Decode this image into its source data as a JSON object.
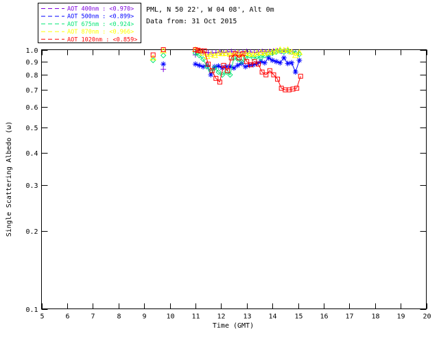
{
  "header": {
    "location": "PML, N 50 22', W 04 08', Alt 0m",
    "date": "Data from: 31 Oct 2015"
  },
  "legend": {
    "entries": [
      {
        "label": "AOT  400nm : <0.970>",
        "color": "#7D00E0",
        "marker": "plus"
      },
      {
        "label": "AOT  500nm : <0.899>",
        "color": "#0000FF",
        "marker": "asterisk"
      },
      {
        "label": "AOT  675nm : <0.924>",
        "color": "#00E673",
        "marker": "diamond"
      },
      {
        "label": "AOT  870nm : <0.966>",
        "color": "#FFFF00",
        "marker": "triangle"
      },
      {
        "label": "AOT 1020nm : <0.859>",
        "color": "#FF0000",
        "marker": "square"
      }
    ]
  },
  "chart_data": {
    "type": "line",
    "title": "",
    "xlabel": "Time (GMT)",
    "ylabel": "Single Scattering Albedo (ω)",
    "xlim": [
      5,
      20
    ],
    "ylim": [
      0.1,
      1.0
    ],
    "y_scale": "log",
    "x_ticks": [
      5,
      6,
      7,
      8,
      9,
      10,
      11,
      12,
      13,
      14,
      15,
      16,
      17,
      18,
      19,
      20
    ],
    "y_ticks": [
      1.0,
      0.9,
      0.8,
      0.7,
      0.6,
      0.5,
      0.4,
      0.3,
      0.2,
      0.1
    ],
    "grid": false,
    "legend_position": "top-left",
    "line_gap_threshold_hours": 0.35,
    "series": [
      {
        "name": "AOT 400nm",
        "mean_label": "<0.970>",
        "color": "#7D00E0",
        "marker": "plus",
        "points": [
          [
            9.75,
            0.84
          ],
          [
            11.0,
            0.955
          ],
          [
            11.12,
            0.99
          ],
          [
            11.3,
            0.98
          ],
          [
            11.5,
            0.975
          ],
          [
            11.65,
            0.97
          ],
          [
            11.8,
            0.975
          ],
          [
            11.95,
            0.98
          ],
          [
            12.1,
            0.975
          ],
          [
            12.25,
            0.98
          ],
          [
            12.4,
            0.985
          ],
          [
            12.55,
            0.98
          ],
          [
            12.7,
            0.975
          ],
          [
            12.85,
            0.98
          ],
          [
            13.0,
            0.985
          ],
          [
            13.15,
            0.98
          ],
          [
            13.3,
            0.975
          ],
          [
            13.45,
            0.98
          ],
          [
            13.6,
            0.985
          ],
          [
            13.75,
            0.98
          ],
          [
            13.9,
            0.985
          ],
          [
            14.05,
            0.99
          ],
          [
            14.2,
            0.99
          ],
          [
            14.35,
            0.985
          ],
          [
            14.5,
            0.99
          ],
          [
            14.65,
            0.985
          ],
          [
            14.8,
            0.98
          ]
        ]
      },
      {
        "name": "AOT 500nm",
        "mean_label": "<0.899>",
        "color": "#0000FF",
        "marker": "asterisk",
        "points": [
          [
            9.75,
            0.88
          ],
          [
            11.0,
            0.88
          ],
          [
            11.15,
            0.87
          ],
          [
            11.3,
            0.86
          ],
          [
            11.45,
            0.87
          ],
          [
            11.6,
            0.8
          ],
          [
            11.75,
            0.86
          ],
          [
            11.9,
            0.865
          ],
          [
            12.05,
            0.85
          ],
          [
            12.2,
            0.86
          ],
          [
            12.35,
            0.86
          ],
          [
            12.5,
            0.85
          ],
          [
            12.65,
            0.87
          ],
          [
            12.8,
            0.885
          ],
          [
            12.95,
            0.86
          ],
          [
            13.1,
            0.87
          ],
          [
            13.25,
            0.875
          ],
          [
            13.4,
            0.885
          ],
          [
            13.55,
            0.9
          ],
          [
            13.7,
            0.89
          ],
          [
            13.85,
            0.93
          ],
          [
            14.0,
            0.91
          ],
          [
            14.15,
            0.9
          ],
          [
            14.3,
            0.89
          ],
          [
            14.45,
            0.93
          ],
          [
            14.6,
            0.885
          ],
          [
            14.75,
            0.89
          ],
          [
            14.9,
            0.82
          ],
          [
            15.05,
            0.91
          ]
        ]
      },
      {
        "name": "AOT 675nm",
        "mean_label": "<0.924>",
        "color": "#00E673",
        "marker": "diamond",
        "points": [
          [
            9.35,
            0.91
          ],
          [
            9.75,
            0.95
          ],
          [
            11.0,
            0.97
          ],
          [
            11.15,
            0.95
          ],
          [
            11.3,
            0.92
          ],
          [
            11.45,
            0.86
          ],
          [
            11.6,
            0.83
          ],
          [
            11.75,
            0.85
          ],
          [
            11.9,
            0.82
          ],
          [
            12.05,
            0.8
          ],
          [
            12.2,
            0.82
          ],
          [
            12.35,
            0.8
          ],
          [
            12.5,
            0.93
          ],
          [
            12.65,
            0.92
          ],
          [
            12.8,
            0.9
          ],
          [
            12.95,
            0.93
          ],
          [
            13.1,
            0.95
          ],
          [
            13.25,
            0.93
          ],
          [
            13.4,
            0.94
          ],
          [
            13.55,
            0.93
          ],
          [
            13.7,
            0.95
          ],
          [
            13.85,
            0.96
          ],
          [
            14.0,
            0.97
          ],
          [
            14.15,
            0.98
          ],
          [
            14.3,
            0.99
          ],
          [
            14.45,
            0.98
          ],
          [
            14.6,
            0.99
          ],
          [
            14.75,
            0.98
          ],
          [
            14.9,
            0.97
          ],
          [
            15.05,
            0.96
          ]
        ]
      },
      {
        "name": "AOT 870nm",
        "mean_label": "<0.966>",
        "color": "#FFFF00",
        "marker": "triangle",
        "points": [
          [
            9.35,
            0.93
          ],
          [
            9.75,
            0.99
          ],
          [
            11.0,
            1.0
          ],
          [
            11.15,
            0.99
          ],
          [
            11.3,
            0.97
          ],
          [
            11.45,
            0.94
          ],
          [
            11.6,
            0.96
          ],
          [
            11.75,
            0.95
          ],
          [
            11.9,
            0.97
          ],
          [
            12.05,
            0.965
          ],
          [
            12.2,
            0.97
          ],
          [
            12.35,
            0.96
          ],
          [
            12.5,
            0.965
          ],
          [
            12.65,
            0.97
          ],
          [
            12.8,
            0.96
          ],
          [
            12.95,
            0.97
          ],
          [
            13.1,
            0.965
          ],
          [
            13.25,
            0.96
          ],
          [
            13.4,
            0.97
          ],
          [
            13.55,
            0.975
          ],
          [
            13.7,
            0.97
          ],
          [
            13.85,
            0.975
          ],
          [
            14.0,
            0.98
          ],
          [
            14.15,
            0.99
          ],
          [
            14.3,
            1.0
          ],
          [
            14.45,
            0.995
          ],
          [
            14.6,
            1.0
          ],
          [
            14.75,
            0.98
          ],
          [
            14.9,
            0.95
          ],
          [
            15.05,
            0.975
          ]
        ]
      },
      {
        "name": "AOT 1020nm",
        "mean_label": "<0.859>",
        "color": "#FF0000",
        "marker": "square",
        "points": [
          [
            9.35,
            0.955
          ],
          [
            9.75,
            1.0
          ],
          [
            11.0,
            1.0
          ],
          [
            11.1,
            0.995
          ],
          [
            11.2,
            0.99
          ],
          [
            11.35,
            0.99
          ],
          [
            11.5,
            0.88
          ],
          [
            11.65,
            0.83
          ],
          [
            11.8,
            0.775
          ],
          [
            11.95,
            0.75
          ],
          [
            12.1,
            0.87
          ],
          [
            12.25,
            0.83
          ],
          [
            12.4,
            0.93
          ],
          [
            12.55,
            0.965
          ],
          [
            12.7,
            0.93
          ],
          [
            12.85,
            0.965
          ],
          [
            13.0,
            0.9
          ],
          [
            13.15,
            0.875
          ],
          [
            13.3,
            0.9
          ],
          [
            13.45,
            0.88
          ],
          [
            13.6,
            0.82
          ],
          [
            13.75,
            0.8
          ],
          [
            13.9,
            0.83
          ],
          [
            14.05,
            0.8
          ],
          [
            14.2,
            0.77
          ],
          [
            14.35,
            0.71
          ],
          [
            14.5,
            0.7
          ],
          [
            14.65,
            0.7
          ],
          [
            14.8,
            0.705
          ],
          [
            14.95,
            0.71
          ],
          [
            15.1,
            0.79
          ]
        ]
      }
    ]
  }
}
